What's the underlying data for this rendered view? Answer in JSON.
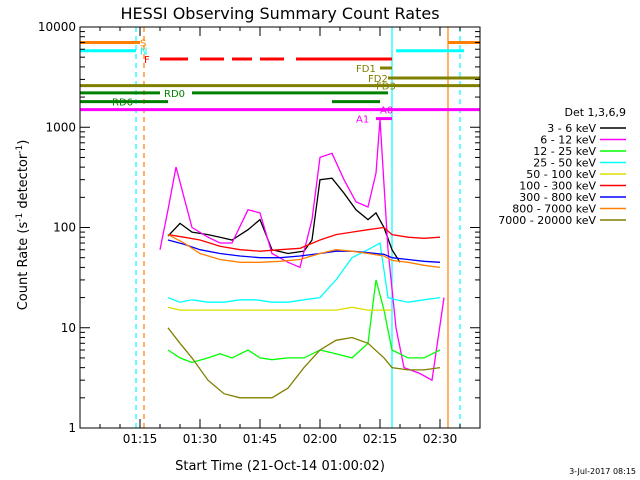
{
  "chart_data": {
    "type": "line",
    "title": "HESSI Observing Summary Count Rates",
    "xlabel": "Start Time (21-Oct-14 01:00:02)",
    "ylabel": "Count Rate (s",
    "ylabel_sup": "-1",
    "ylabel_mid": " detector",
    "ylabel_sup2": "-1",
    "ylabel_end": ")",
    "y_scale": "log",
    "xlim": [
      "01:00",
      "02:40"
    ],
    "ylim": [
      1,
      10000
    ],
    "x_ticks": [
      "01:15",
      "01:30",
      "01:45",
      "02:00",
      "02:15",
      "02:30"
    ],
    "y_ticks": [
      "1",
      "10",
      "100",
      "1000",
      "10000"
    ],
    "legend_title": "Det 1,3,6,9",
    "legend_position": "right",
    "timestamp": "3-Jul-2017 08:15",
    "series": [
      {
        "name": "3 - 6 keV",
        "color": "#000000",
        "x": [
          "01:22",
          "01:25",
          "01:28",
          "01:32",
          "01:35",
          "01:38",
          "01:42",
          "01:45",
          "01:48",
          "01:52",
          "01:56",
          "01:58",
          "02:00",
          "02:03",
          "02:06",
          "02:09",
          "02:12",
          "02:14",
          "02:16",
          "02:18",
          "02:20"
        ],
        "values": [
          82,
          110,
          90,
          85,
          80,
          75,
          95,
          120,
          60,
          55,
          58,
          75,
          300,
          310,
          220,
          150,
          120,
          140,
          100,
          60,
          45
        ]
      },
      {
        "name": "6 - 12 keV",
        "color": "#ff00ff",
        "x": [
          "01:20",
          "01:22",
          "01:24",
          "01:26",
          "01:28",
          "01:32",
          "01:35",
          "01:38",
          "01:42",
          "01:45",
          "01:48",
          "01:52",
          "01:55",
          "01:58",
          "02:00",
          "02:03",
          "02:06",
          "02:09",
          "02:12",
          "02:14",
          "02:15",
          "02:17",
          "02:19",
          "02:21",
          "02:25",
          "02:28",
          "02:31"
        ],
        "values": [
          60,
          150,
          400,
          200,
          100,
          80,
          70,
          70,
          150,
          140,
          55,
          45,
          40,
          120,
          500,
          550,
          300,
          180,
          160,
          350,
          1200,
          60,
          10,
          4,
          3.5,
          3,
          20
        ]
      },
      {
        "name": "12 - 25 keV",
        "color": "#00ff00",
        "x": [
          "01:22",
          "01:25",
          "01:28",
          "01:32",
          "01:35",
          "01:38",
          "01:42",
          "01:45",
          "01:48",
          "01:52",
          "01:56",
          "02:00",
          "02:04",
          "02:08",
          "02:12",
          "02:14",
          "02:16",
          "02:18",
          "02:22",
          "02:26",
          "02:30"
        ],
        "values": [
          6,
          5,
          4.5,
          5,
          5.5,
          5,
          6,
          5,
          4.8,
          5,
          5,
          6,
          5.5,
          5,
          7,
          30,
          15,
          6,
          5,
          5,
          6
        ]
      },
      {
        "name": "25 - 50 keV",
        "color": "#00ffff",
        "x": [
          "01:22",
          "01:25",
          "01:28",
          "01:32",
          "01:36",
          "01:40",
          "01:44",
          "01:48",
          "01:52",
          "01:56",
          "02:00",
          "02:04",
          "02:08",
          "02:12",
          "02:15",
          "02:17",
          "02:19",
          "02:22",
          "02:26",
          "02:30"
        ],
        "values": [
          20,
          18,
          19,
          18,
          18,
          19,
          19,
          18,
          18,
          19,
          20,
          30,
          50,
          60,
          70,
          20,
          19,
          18,
          19,
          20
        ]
      },
      {
        "name": "50 - 100 keV",
        "color": "#dddd00",
        "x": [
          "01:22",
          "01:25",
          "01:28",
          "02:04",
          "02:08",
          "02:12",
          "02:16",
          "02:18"
        ],
        "values": [
          16,
          15,
          15,
          15,
          16,
          15,
          15,
          15
        ]
      },
      {
        "name": "100 - 300 keV",
        "color": "#ff0000",
        "x": [
          "01:22",
          "01:26",
          "01:30",
          "01:35",
          "01:40",
          "01:45",
          "01:50",
          "01:55",
          "02:00",
          "02:04",
          "02:08",
          "02:12",
          "02:16",
          "02:18",
          "02:22",
          "02:26",
          "02:30"
        ],
        "values": [
          85,
          80,
          75,
          65,
          60,
          58,
          60,
          62,
          75,
          85,
          90,
          95,
          100,
          85,
          80,
          78,
          80
        ]
      },
      {
        "name": "300 - 800 keV",
        "color": "#0000ff",
        "x": [
          "01:22",
          "01:26",
          "01:30",
          "01:35",
          "01:40",
          "01:45",
          "01:50",
          "01:55",
          "02:00",
          "02:04",
          "02:08",
          "02:12",
          "02:16",
          "02:18",
          "02:22",
          "02:26",
          "02:30"
        ],
        "values": [
          75,
          68,
          60,
          55,
          52,
          50,
          50,
          52,
          55,
          58,
          58,
          56,
          54,
          50,
          48,
          46,
          45
        ]
      },
      {
        "name": "800 - 7000 keV",
        "color": "#ff8000",
        "x": [
          "01:22",
          "01:26",
          "01:30",
          "01:35",
          "01:40",
          "01:45",
          "01:50",
          "01:55",
          "02:00",
          "02:04",
          "02:08",
          "02:12",
          "02:16",
          "02:18",
          "02:22",
          "02:26",
          "02:30"
        ],
        "values": [
          85,
          70,
          55,
          48,
          45,
          45,
          46,
          48,
          55,
          60,
          58,
          55,
          52,
          47,
          45,
          42,
          40
        ]
      },
      {
        "name": "7000 - 20000 keV",
        "color": "#808000",
        "x": [
          "01:22",
          "01:25",
          "01:28",
          "01:32",
          "01:36",
          "01:40",
          "01:44",
          "01:48",
          "01:52",
          "01:56",
          "02:00",
          "02:04",
          "02:08",
          "02:12",
          "02:16",
          "02:18",
          "02:22",
          "02:26",
          "02:30"
        ],
        "values": [
          10,
          7,
          5,
          3,
          2.2,
          2,
          2,
          2,
          2.5,
          4,
          6,
          7.5,
          8,
          7,
          5,
          4,
          3.8,
          3.8,
          4
        ]
      }
    ],
    "flags": [
      {
        "label": "S",
        "color": "#ff8000",
        "y": 7000,
        "label_x": "01:15",
        "segments": [
          [
            "01:00",
            "01:15"
          ],
          [
            "02:32",
            "02:40"
          ]
        ]
      },
      {
        "label": "N",
        "color": "#00ffff",
        "y": 5800,
        "label_x": "01:15",
        "segments": [
          [
            "01:00",
            "01:14"
          ],
          [
            "02:19",
            "02:36"
          ]
        ]
      },
      {
        "label": "F",
        "color": "#ff0000",
        "y": 4800,
        "label_x": "01:16",
        "segments": [
          [
            "01:20",
            "01:27"
          ],
          [
            "01:30",
            "01:36"
          ],
          [
            "01:38",
            "01:43"
          ],
          [
            "01:45",
            "01:51"
          ],
          [
            "01:54",
            "02:18"
          ]
        ]
      },
      {
        "label": "FD1",
        "color": "#808000",
        "y": 3900,
        "label_x": "02:09",
        "segments": [
          [
            "02:15",
            "02:18"
          ]
        ]
      },
      {
        "label": "FD2",
        "color": "#808000",
        "y": 3100,
        "label_x": "02:12",
        "segments": [
          [
            "02:17",
            "02:40"
          ]
        ]
      },
      {
        "label": "FD3",
        "color": "#808000",
        "y": 2600,
        "label_x": "02:14",
        "segments": [
          [
            "01:00",
            "02:40"
          ]
        ]
      },
      {
        "label": "RD0",
        "color": "#008000",
        "y": 2200,
        "label_x": "01:21",
        "segments": [
          [
            "01:00",
            "01:20"
          ],
          [
            "01:28",
            "02:17"
          ]
        ]
      },
      {
        "label": "RD6",
        "color": "#008000",
        "y": 1800,
        "label_x": "01:08",
        "segments": [
          [
            "01:00",
            "01:22"
          ],
          [
            "02:03",
            "02:15"
          ]
        ]
      },
      {
        "label": "A0",
        "color": "#ff00ff",
        "y": 1500,
        "label_x": "02:15",
        "segments": [
          [
            "01:00",
            "02:40"
          ]
        ]
      },
      {
        "label": "A1",
        "color": "#ff00ff",
        "y": 1220,
        "label_x": "02:09",
        "segments": [
          [
            "02:14",
            "02:18"
          ]
        ]
      }
    ],
    "vlines": [
      {
        "x": "01:14",
        "color": "#00ffff",
        "style": "dashed"
      },
      {
        "x": "01:16",
        "color": "#ff8000",
        "style": "dashed"
      },
      {
        "x": "02:18",
        "color": "#00ffff",
        "style": "solid"
      },
      {
        "x": "02:32",
        "color": "#ff8000",
        "style": "solid"
      },
      {
        "x": "02:35",
        "color": "#00ffff",
        "style": "dashed"
      }
    ]
  }
}
